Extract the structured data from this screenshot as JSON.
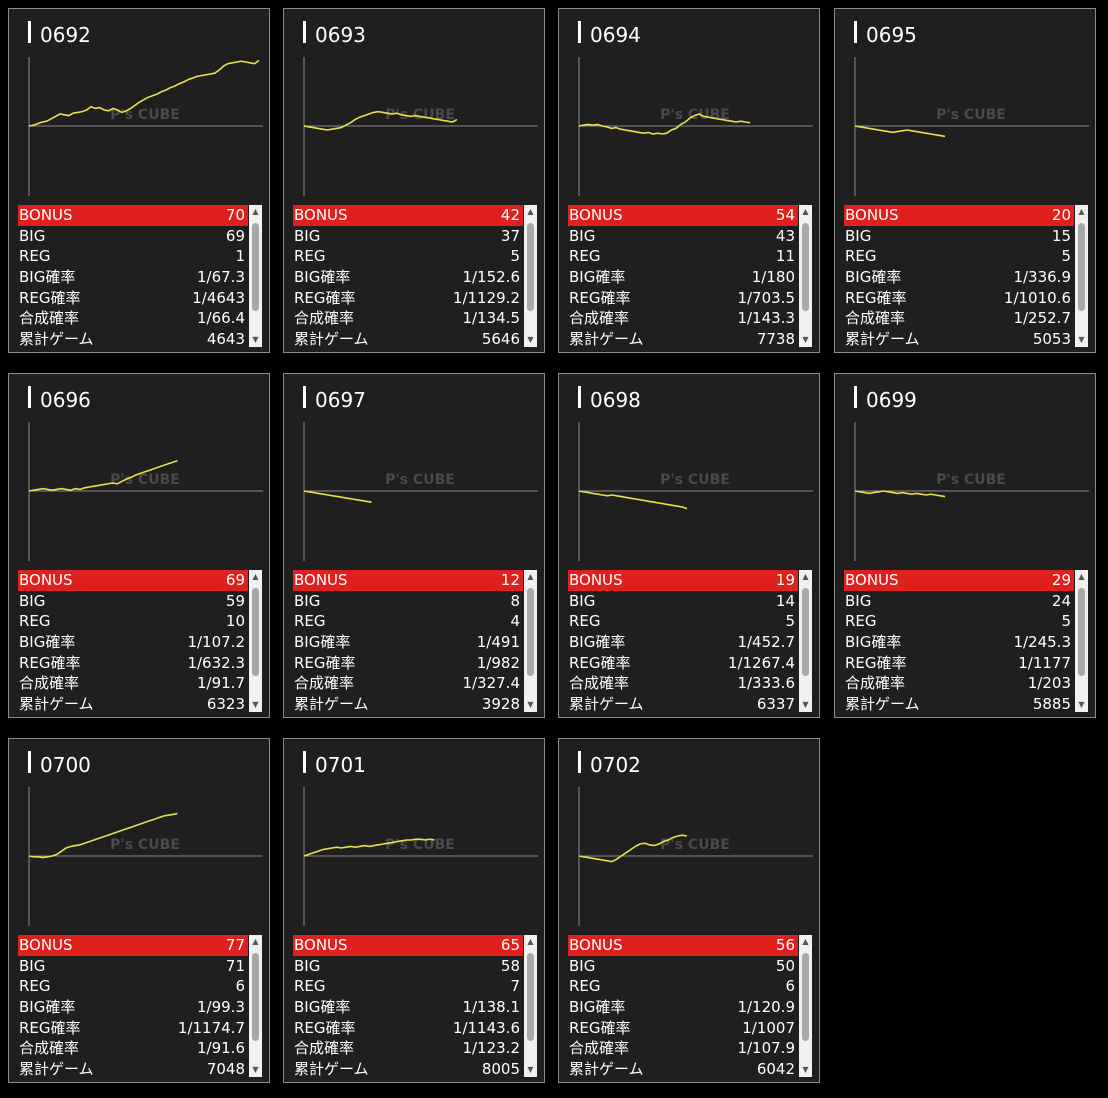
{
  "watermark": "P's CUBE",
  "colors": {
    "line": "#e8e04a",
    "bonus_bg": "#e0201d",
    "axis": "#888888"
  },
  "labels": {
    "bonus": "BONUS",
    "big": "BIG",
    "reg": "REG",
    "big_rate": "BIG確率",
    "reg_rate": "REG確率",
    "total_rate": "合成確率",
    "games": "累計ゲーム"
  },
  "machines": [
    {
      "id": "0692",
      "bonus": "70",
      "big": "69",
      "reg": "1",
      "big_rate": "1/67.3",
      "reg_rate": "1/4643",
      "total_rate": "1/66.4",
      "games": "4643",
      "trend": [
        0,
        1,
        3,
        5,
        6,
        9,
        12,
        15,
        14,
        13,
        16,
        17,
        18,
        20,
        24,
        22,
        23,
        20,
        19,
        22,
        20,
        17,
        19,
        22,
        26,
        30,
        33,
        36,
        38,
        40,
        43,
        45,
        48,
        50,
        53,
        55,
        58,
        60,
        62,
        63,
        64,
        65,
        66,
        70,
        75,
        78,
        79,
        80,
        81,
        80,
        79,
        78,
        82
      ]
    },
    {
      "id": "0693",
      "bonus": "42",
      "big": "37",
      "reg": "5",
      "big_rate": "1/152.6",
      "reg_rate": "1/1129.2",
      "total_rate": "1/134.5",
      "games": "5646",
      "trend": [
        0,
        -1,
        -2,
        -3,
        -4,
        -5,
        -4,
        -3,
        -2,
        1,
        4,
        8,
        11,
        13,
        15,
        17,
        18,
        17,
        16,
        15,
        16,
        14,
        13,
        12,
        13,
        12,
        11,
        10,
        9,
        8,
        7,
        6,
        5,
        8
      ]
    },
    {
      "id": "0694",
      "bonus": "54",
      "big": "43",
      "reg": "11",
      "big_rate": "1/180",
      "reg_rate": "1/703.5",
      "total_rate": "1/143.3",
      "games": "7738",
      "trend": [
        0,
        1,
        2,
        1,
        2,
        0,
        -1,
        -3,
        -2,
        -4,
        -5,
        -6,
        -7,
        -8,
        -9,
        -8,
        -10,
        -9,
        -10,
        -9,
        -5,
        -3,
        2,
        5,
        10,
        13,
        15,
        12,
        11,
        10,
        9,
        8,
        7,
        6,
        5,
        6,
        5,
        4
      ]
    },
    {
      "id": "0695",
      "bonus": "20",
      "big": "15",
      "reg": "5",
      "big_rate": "1/336.9",
      "reg_rate": "1/1010.6",
      "total_rate": "1/252.7",
      "games": "5053",
      "trend": [
        0,
        -1,
        -2,
        -3,
        -4,
        -5,
        -6,
        -7,
        -8,
        -7,
        -6,
        -5,
        -6,
        -7,
        -8,
        -9,
        -10,
        -11,
        -12,
        -13
      ]
    },
    {
      "id": "0696",
      "bonus": "69",
      "big": "59",
      "reg": "10",
      "big_rate": "1/107.2",
      "reg_rate": "1/632.3",
      "total_rate": "1/91.7",
      "games": "6323",
      "trend": [
        0,
        1,
        2,
        3,
        2,
        1,
        2,
        3,
        2,
        1,
        3,
        2,
        4,
        5,
        6,
        7,
        8,
        9,
        10,
        9,
        12,
        15,
        17,
        20,
        22,
        24,
        26,
        28,
        30,
        32,
        34,
        36,
        38
      ]
    },
    {
      "id": "0697",
      "bonus": "12",
      "big": "8",
      "reg": "4",
      "big_rate": "1/491",
      "reg_rate": "1/982",
      "total_rate": "1/327.4",
      "games": "3928",
      "trend": [
        0,
        -1,
        -2,
        -3,
        -4,
        -5,
        -6,
        -7,
        -8,
        -9,
        -10,
        -11,
        -12,
        -13,
        -14
      ]
    },
    {
      "id": "0698",
      "bonus": "19",
      "big": "14",
      "reg": "5",
      "big_rate": "1/452.7",
      "reg_rate": "1/1267.4",
      "total_rate": "1/333.6",
      "games": "6337",
      "trend": [
        0,
        -1,
        -2,
        -3,
        -4,
        -5,
        -6,
        -5,
        -6,
        -7,
        -8,
        -9,
        -10,
        -11,
        -12,
        -13,
        -14,
        -15,
        -16,
        -17,
        -18,
        -19,
        -20,
        -22
      ]
    },
    {
      "id": "0699",
      "bonus": "29",
      "big": "24",
      "reg": "5",
      "big_rate": "1/245.3",
      "reg_rate": "1/1177",
      "total_rate": "1/203",
      "games": "5885",
      "trend": [
        0,
        -1,
        -2,
        -3,
        -2,
        -1,
        0,
        -1,
        -2,
        -3,
        -2,
        -3,
        -4,
        -3,
        -4,
        -5,
        -4,
        -5,
        -6,
        -7
      ]
    },
    {
      "id": "0700",
      "bonus": "77",
      "big": "71",
      "reg": "6",
      "big_rate": "1/99.3",
      "reg_rate": "1/1174.7",
      "total_rate": "1/91.6",
      "games": "7048",
      "trend": [
        0,
        -1,
        -1,
        -2,
        -1,
        0,
        2,
        6,
        10,
        12,
        13,
        14,
        16,
        18,
        20,
        22,
        24,
        26,
        28,
        30,
        32,
        34,
        36,
        38,
        40,
        42,
        44,
        46,
        48,
        50,
        51,
        52,
        53
      ]
    },
    {
      "id": "0701",
      "bonus": "65",
      "big": "58",
      "reg": "7",
      "big_rate": "1/138.1",
      "reg_rate": "1/1143.6",
      "total_rate": "1/123.2",
      "games": "8005",
      "trend": [
        0,
        2,
        4,
        6,
        8,
        9,
        10,
        11,
        10,
        11,
        12,
        11,
        12,
        13,
        12,
        13,
        14,
        15,
        16,
        17,
        18,
        19,
        20,
        20,
        21,
        21,
        20,
        21,
        20
      ]
    },
    {
      "id": "0702",
      "bonus": "56",
      "big": "50",
      "reg": "6",
      "big_rate": "1/120.9",
      "reg_rate": "1/1007",
      "total_rate": "1/107.9",
      "games": "6042",
      "trend": [
        0,
        -1,
        -2,
        -3,
        -4,
        -5,
        -6,
        -7,
        -4,
        0,
        4,
        8,
        12,
        15,
        16,
        14,
        13,
        15,
        18,
        20,
        23,
        25,
        26,
        25
      ]
    }
  ]
}
